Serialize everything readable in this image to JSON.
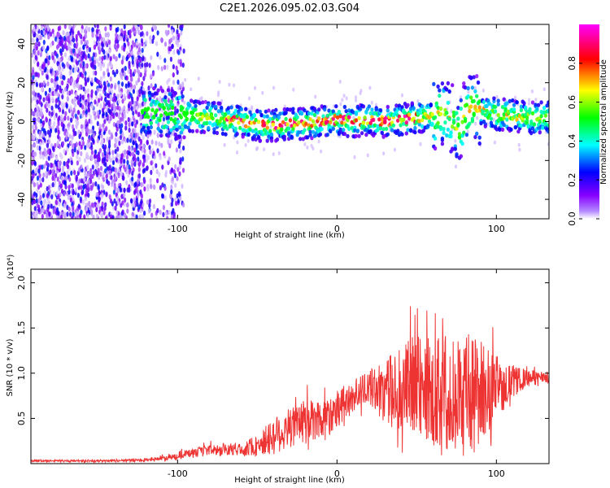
{
  "title": "C2E1.2026.095.02.03.G04",
  "chart_data": [
    {
      "type": "heatmap",
      "title": "C2E1.2026.095.02.03.G04",
      "xlabel": "Height of straight line (km)",
      "ylabel": "Frequency (Hz)",
      "xlim": [
        -192,
        133
      ],
      "ylim": [
        -50,
        50
      ],
      "xticks": [
        -100,
        0,
        100
      ],
      "xtick_labels": [
        "-100",
        "0",
        "100"
      ],
      "yticks": [
        -40,
        -20,
        0,
        20,
        40
      ],
      "ytick_labels": [
        "-40",
        "-20",
        "0",
        "20",
        "40"
      ],
      "ridge": {
        "x": [
          -120,
          -110,
          -100,
          -90,
          -80,
          -70,
          -60,
          -50,
          -40,
          -30,
          -20,
          -10,
          0,
          10,
          20,
          30,
          40,
          50,
          60,
          66,
          72,
          76,
          80,
          84,
          90,
          100,
          110,
          120,
          133
        ],
        "freq": [
          5,
          4,
          4,
          3,
          2,
          1,
          0,
          -2,
          -2,
          -1,
          -1,
          0,
          1,
          0,
          1,
          0,
          1,
          2,
          3,
          4,
          2,
          -6,
          3,
          8,
          5,
          4,
          3,
          2,
          2
        ]
      },
      "noise_region_x": [
        -192,
        -102
      ],
      "colorbar": {
        "label": "Normalized spectral amplitude",
        "range": [
          0,
          1
        ],
        "ticks": [
          0.0,
          0.2,
          0.4,
          0.6,
          0.8
        ],
        "tick_labels": [
          "0.0",
          "0.2",
          "0.4",
          "0.6",
          "0.8"
        ],
        "colors": [
          "#ffffff",
          "#8800ff",
          "#0000ff",
          "#00ffff",
          "#00ff00",
          "#ffff00",
          "#ff0000",
          "#ff00ff"
        ]
      }
    },
    {
      "type": "line",
      "xlabel": "Height of straight line (km)",
      "ylabel": "SNR (10 * v/v)",
      "scale_label": "(x10⁴)",
      "color": "#ee3333",
      "xlim": [
        -192,
        133
      ],
      "ylim": [
        0,
        2.15
      ],
      "xticks": [
        -100,
        0,
        100
      ],
      "xtick_labels": [
        "-100",
        "0",
        "100"
      ],
      "yticks": [
        0.5,
        1.0,
        1.5,
        2.0
      ],
      "ytick_labels": [
        "0.5",
        "1.0",
        "1.5",
        "2.0"
      ],
      "envelope": {
        "x": [
          -192,
          -150,
          -120,
          -105,
          -90,
          -80,
          -70,
          -60,
          -50,
          -40,
          -30,
          -20,
          -10,
          0,
          10,
          20,
          30,
          40,
          50,
          60,
          70,
          80,
          90,
          100,
          110,
          120,
          133
        ],
        "center": [
          0.03,
          0.03,
          0.04,
          0.07,
          0.12,
          0.15,
          0.15,
          0.16,
          0.2,
          0.3,
          0.4,
          0.45,
          0.5,
          0.6,
          0.75,
          0.85,
          0.8,
          0.8,
          0.85,
          0.8,
          0.8,
          0.75,
          0.8,
          0.85,
          0.9,
          0.95,
          0.95
        ],
        "amplitude": [
          0.01,
          0.01,
          0.02,
          0.05,
          0.08,
          0.1,
          0.1,
          0.12,
          0.2,
          0.35,
          0.4,
          0.4,
          0.4,
          0.35,
          0.3,
          0.3,
          0.6,
          0.8,
          1.0,
          1.0,
          1.1,
          1.2,
          1.0,
          0.6,
          0.3,
          0.15,
          0.1
        ]
      }
    }
  ]
}
